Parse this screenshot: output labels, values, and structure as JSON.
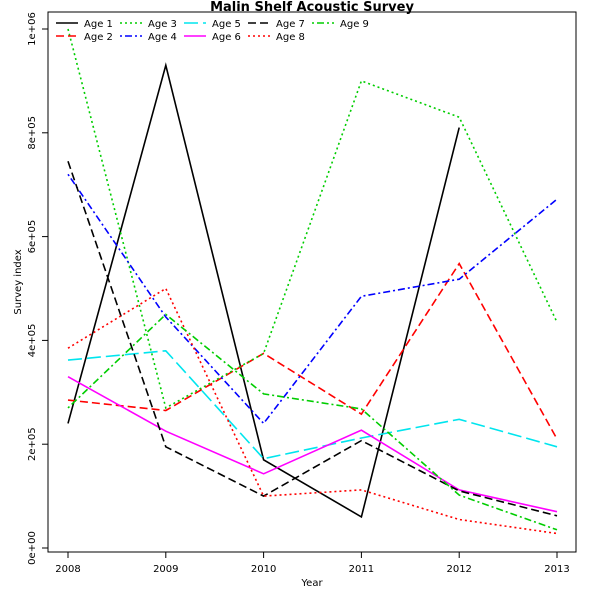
{
  "chart_data": {
    "type": "line",
    "title": "Malin Shelf Acoustic Survey",
    "xlabel": "Year",
    "ylabel": "Survey index",
    "x": [
      2008,
      2009,
      2010,
      2011,
      2012,
      2013
    ],
    "x_tick_labels": [
      "2008",
      "2009",
      "2010",
      "2011",
      "2012",
      "2013"
    ],
    "y_ticks": [
      0,
      200000,
      400000,
      600000,
      800000,
      1000000
    ],
    "y_tick_labels": [
      "0e+00",
      "2e+05",
      "4e+05",
      "6e+05",
      "8e+05",
      "1e+06"
    ],
    "xlim": [
      2008,
      2013
    ],
    "ylim": [
      0,
      1000000
    ],
    "grid": false,
    "legend_placement": "top-left",
    "series": [
      {
        "name": "Age 1",
        "color": "#000000",
        "dash": "solid",
        "values": [
          240000,
          930000,
          170000,
          60000,
          810000,
          null
        ]
      },
      {
        "name": "Age 2",
        "color": "#ff0000",
        "dash": "dashed",
        "values": [
          285000,
          265000,
          375000,
          258000,
          548000,
          210000
        ]
      },
      {
        "name": "Age 3",
        "color": "#00cd00",
        "dash": "dotted",
        "values": [
          1000000,
          270000,
          375000,
          900000,
          830000,
          435000
        ]
      },
      {
        "name": "Age 4",
        "color": "#0000ff",
        "dash": "dotdash",
        "values": [
          720000,
          445000,
          240000,
          485000,
          518000,
          672000
        ]
      },
      {
        "name": "Age 5",
        "color": "#00e5ee",
        "dash": "longdash",
        "values": [
          362000,
          380000,
          172000,
          212000,
          248000,
          195000
        ]
      },
      {
        "name": "Age 6",
        "color": "#ff00ff",
        "dash": "solid",
        "values": [
          330000,
          225000,
          143000,
          227000,
          112000,
          70000
        ]
      },
      {
        "name": "Age 7",
        "color": "#000000",
        "dash": "dashed",
        "values": [
          745000,
          195000,
          100000,
          207000,
          110000,
          62000
        ]
      },
      {
        "name": "Age 8",
        "color": "#ff0000",
        "dash": "dotted",
        "values": [
          385000,
          500000,
          100000,
          112000,
          55000,
          28000
        ]
      },
      {
        "name": "Age 9",
        "color": "#00cd00",
        "dash": "dotdash",
        "values": [
          270000,
          450000,
          297000,
          268000,
          102000,
          35000
        ]
      }
    ]
  }
}
